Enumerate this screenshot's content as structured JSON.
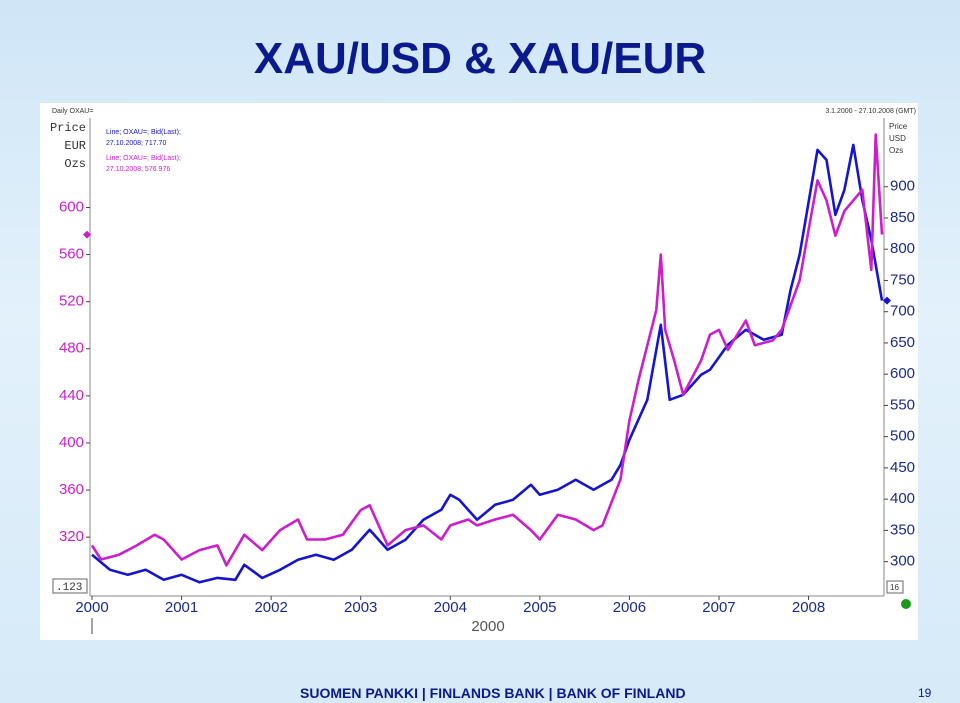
{
  "title": "XAU/USD & XAU/EUR",
  "footer": "SUOMEN PANKKI | FINLANDS BANK | BANK OF FINLAND",
  "page_number": "19",
  "chart_data": {
    "type": "line",
    "header_left": "Daily OXAU=",
    "header_right": "3.1.2000 - 27.10.2008 (GMT)",
    "ylabel": [
      "Price",
      "EUR",
      "Ozs"
    ],
    "y2label": [
      "Price",
      "USD",
      "Ozs"
    ],
    "x_period": "2000",
    "corner_left": ".123",
    "corner_right": "16",
    "xlim": [
      2000,
      2008.82
    ],
    "xticks": [
      2000,
      2001,
      2002,
      2003,
      2004,
      2005,
      2006,
      2007,
      2008
    ],
    "ylim": [
      270,
      676
    ],
    "yticks": [
      320,
      360,
      400,
      440,
      480,
      520,
      560,
      600
    ],
    "y2lim": [
      245,
      1010
    ],
    "y2ticks": [
      300,
      350,
      400,
      450,
      500,
      550,
      600,
      650,
      700,
      750,
      800,
      850,
      900
    ],
    "grid": false,
    "series": [
      {
        "name": "Line; OXAU=; Bid(Last);",
        "last_label": "27.10.2008; 717.70",
        "color": "#1515d0",
        "axis": "y2",
        "x": [
          2000.0,
          2000.2,
          2000.4,
          2000.6,
          2000.8,
          2001.0,
          2001.2,
          2001.4,
          2001.6,
          2001.7,
          2001.9,
          2002.1,
          2002.3,
          2002.5,
          2002.7,
          2002.9,
          2003.1,
          2003.3,
          2003.5,
          2003.7,
          2003.9,
          2004.0,
          2004.1,
          2004.3,
          2004.5,
          2004.7,
          2004.9,
          2005.0,
          2005.2,
          2005.4,
          2005.6,
          2005.8,
          2005.9,
          2006.0,
          2006.2,
          2006.35,
          2006.45,
          2006.6,
          2006.8,
          2006.9,
          2007.1,
          2007.3,
          2007.5,
          2007.7,
          2007.8,
          2007.9,
          2008.1,
          2008.2,
          2008.3,
          2008.4,
          2008.5,
          2008.6,
          2008.7,
          2008.82
        ],
        "values": [
          311,
          287,
          279,
          287,
          271,
          279,
          267,
          274,
          271,
          295,
          274,
          287,
          303,
          311,
          303,
          319,
          351,
          319,
          335,
          367,
          383,
          407,
          399,
          367,
          391,
          399,
          423,
          407,
          415,
          431,
          415,
          431,
          455,
          495,
          559,
          679,
          559,
          567,
          599,
          607,
          647,
          671,
          655,
          663,
          735,
          791,
          959,
          943,
          855,
          895,
          967,
          879,
          815,
          717.7
        ]
      },
      {
        "name": "Line; OXAU=; Bid(Last);",
        "last_label": "27.10.2008; 576.976",
        "color": "#cc1fcc",
        "axis": "y",
        "x": [
          2000.0,
          2000.1,
          2000.3,
          2000.5,
          2000.7,
          2000.8,
          2001.0,
          2001.2,
          2001.4,
          2001.5,
          2001.7,
          2001.9,
          2002.1,
          2002.3,
          2002.4,
          2002.6,
          2002.8,
          2003.0,
          2003.1,
          2003.3,
          2003.5,
          2003.7,
          2003.9,
          2004.0,
          2004.2,
          2004.3,
          2004.5,
          2004.7,
          2004.9,
          2005.0,
          2005.2,
          2005.4,
          2005.6,
          2005.7,
          2005.9,
          2006.0,
          2006.1,
          2006.3,
          2006.35,
          2006.4,
          2006.5,
          2006.6,
          2006.8,
          2006.9,
          2007.0,
          2007.1,
          2007.3,
          2007.4,
          2007.6,
          2007.7,
          2007.9,
          2008.0,
          2008.1,
          2008.2,
          2008.3,
          2008.4,
          2008.5,
          2008.6,
          2008.7,
          2008.75,
          2008.82
        ],
        "values": [
          313,
          301,
          305,
          313,
          322,
          318,
          301,
          309,
          313,
          296,
          322,
          309,
          326,
          335,
          318,
          318,
          322,
          343,
          347,
          313,
          326,
          330,
          318,
          330,
          335,
          330,
          335,
          339,
          326,
          318,
          339,
          335,
          326,
          330,
          369,
          419,
          453,
          513,
          560,
          496,
          470,
          441,
          470,
          492,
          496,
          479,
          504,
          483,
          487,
          496,
          538,
          581,
          623,
          606,
          576,
          597,
          606,
          615,
          547,
          662,
          576.976
        ]
      }
    ]
  }
}
